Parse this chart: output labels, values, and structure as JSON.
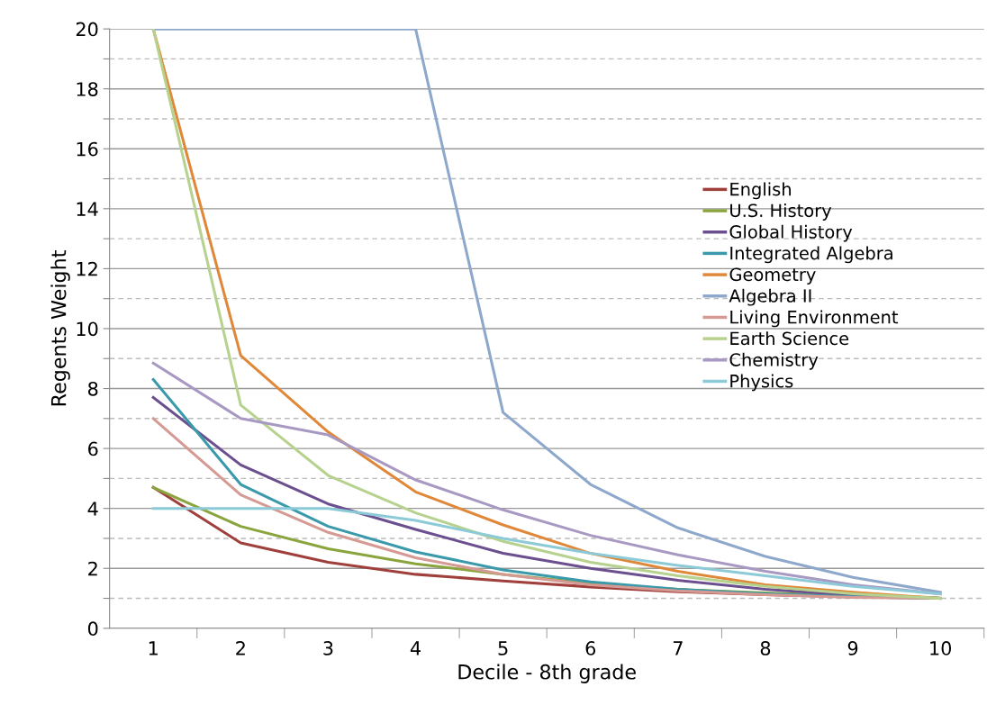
{
  "chart_data": {
    "type": "line",
    "xlabel": "Decile - 8th grade",
    "ylabel": "Regents Weight",
    "categories": [
      "1",
      "2",
      "3",
      "4",
      "5",
      "6",
      "7",
      "8",
      "9",
      "10"
    ],
    "ylim": [
      0,
      20
    ],
    "yticks": [
      0,
      {
        "value": 1,
        "label": null
      },
      2,
      {
        "value": 3,
        "label": null
      },
      4,
      {
        "value": 5,
        "label": null
      },
      6,
      {
        "value": 7,
        "label": null
      },
      8,
      {
        "value": 9,
        "label": null
      },
      10,
      {
        "value": 11,
        "label": null
      },
      12,
      {
        "value": 13,
        "label": null
      },
      14,
      {
        "value": 15,
        "label": null
      },
      16,
      {
        "value": 17,
        "label": null
      },
      18,
      {
        "value": 19,
        "label": null
      },
      20
    ],
    "grid": "y",
    "legend": "right",
    "marker": "none",
    "line_style": "solid",
    "series": [
      {
        "name": "English",
        "color": "#a0403c",
        "values": [
          4.7,
          2.85,
          2.2,
          1.8,
          1.58,
          1.38,
          1.22,
          1.12,
          1.05,
          1.0
        ]
      },
      {
        "name": "U.S. History",
        "color": "#8aa43e",
        "values": [
          4.7,
          3.4,
          2.65,
          2.15,
          1.8,
          1.5,
          1.3,
          1.18,
          1.08,
          1.0
        ]
      },
      {
        "name": "Global History",
        "color": "#6b4f8e",
        "values": [
          7.7,
          5.45,
          4.15,
          3.3,
          2.5,
          2.0,
          1.6,
          1.3,
          1.1,
          1.0
        ]
      },
      {
        "name": "Integrated Algebra",
        "color": "#3a9aab",
        "values": [
          8.3,
          4.8,
          3.4,
          2.55,
          1.95,
          1.55,
          1.3,
          1.15,
          1.05,
          1.0
        ]
      },
      {
        "name": "Geometry",
        "color": "#e0883a",
        "values": [
          20,
          9.1,
          6.55,
          4.55,
          3.45,
          2.5,
          1.9,
          1.45,
          1.2,
          1.0
        ]
      },
      {
        "name": "Algebra II",
        "color": "#8ea8cc",
        "values": [
          20,
          20,
          20,
          20,
          7.2,
          4.8,
          3.35,
          2.4,
          1.7,
          1.2
        ]
      },
      {
        "name": "Living Environment",
        "color": "#d59a93",
        "values": [
          7.0,
          4.45,
          3.2,
          2.35,
          1.8,
          1.45,
          1.25,
          1.12,
          1.03,
          1.0
        ]
      },
      {
        "name": "Earth Science",
        "color": "#b7d28f",
        "values": [
          20,
          7.45,
          5.1,
          3.85,
          2.9,
          2.2,
          1.75,
          1.4,
          1.15,
          1.0
        ]
      },
      {
        "name": "Chemistry",
        "color": "#a899c2",
        "values": [
          8.85,
          7.0,
          6.45,
          4.95,
          3.95,
          3.1,
          2.45,
          1.9,
          1.45,
          1.15
        ]
      },
      {
        "name": "Physics",
        "color": "#8ccad8",
        "values": [
          4.0,
          4.0,
          4.0,
          3.6,
          3.0,
          2.5,
          2.1,
          1.75,
          1.4,
          1.15
        ]
      }
    ]
  }
}
